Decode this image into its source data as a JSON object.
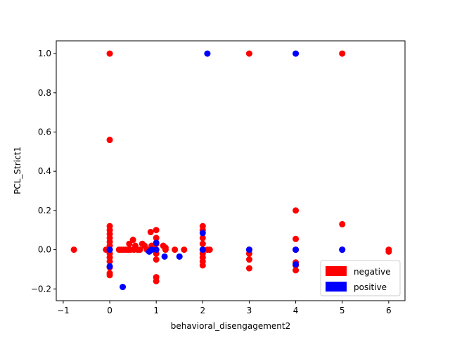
{
  "chart_data": {
    "type": "scatter",
    "title": "",
    "xlabel": "behavioral_disengagement2",
    "ylabel": "PCL_Strict1",
    "xlim": [
      -1.15,
      6.35
    ],
    "ylim": [
      -0.26,
      1.065
    ],
    "x_ticks": [
      -1,
      0,
      1,
      2,
      3,
      4,
      5,
      6
    ],
    "x_tick_labels": [
      "−1",
      "0",
      "1",
      "2",
      "3",
      "4",
      "5",
      "6"
    ],
    "y_ticks": [
      -0.2,
      0.0,
      0.2,
      0.4,
      0.6,
      0.8,
      1.0
    ],
    "y_tick_labels": [
      "−0.2",
      "0.0",
      "0.2",
      "0.4",
      "0.6",
      "0.8",
      "1.0"
    ],
    "grid": false,
    "legend_position": "lower-right",
    "series": [
      {
        "name": "negative",
        "color": "#ff0000",
        "points": [
          [
            -0.77,
            0.0
          ],
          [
            0,
            1.0
          ],
          [
            0,
            0.56
          ],
          [
            0,
            0.12
          ],
          [
            0,
            0.1
          ],
          [
            0,
            0.08
          ],
          [
            0,
            0.06
          ],
          [
            0,
            0.04
          ],
          [
            0,
            0.02
          ],
          [
            0,
            0.0
          ],
          [
            0,
            -0.02
          ],
          [
            0,
            -0.04
          ],
          [
            0,
            -0.06
          ],
          [
            0,
            -0.09
          ],
          [
            0,
            -0.12
          ],
          [
            0,
            -0.13
          ],
          [
            -0.08,
            0.0
          ],
          [
            0.2,
            0.0
          ],
          [
            0.25,
            0.0
          ],
          [
            0.3,
            0.0
          ],
          [
            0.35,
            0.0
          ],
          [
            0.4,
            0.0
          ],
          [
            0.42,
            0.03
          ],
          [
            0.45,
            0.0
          ],
          [
            0.5,
            0.05
          ],
          [
            0.52,
            0.0
          ],
          [
            0.55,
            0.02
          ],
          [
            0.6,
            0.0
          ],
          [
            0.65,
            0.0
          ],
          [
            0.7,
            0.03
          ],
          [
            0.75,
            0.02
          ],
          [
            0.8,
            0.0
          ],
          [
            0.85,
            0.0
          ],
          [
            0.88,
            0.09
          ],
          [
            0.9,
            0.02
          ],
          [
            0.95,
            0.0
          ],
          [
            1.0,
            0.1
          ],
          [
            1.0,
            0.06
          ],
          [
            1.0,
            0.03
          ],
          [
            1.0,
            0.0
          ],
          [
            1.0,
            -0.02
          ],
          [
            1.0,
            -0.05
          ],
          [
            1.0,
            -0.14
          ],
          [
            1.0,
            -0.16
          ],
          [
            1.15,
            0.02
          ],
          [
            1.2,
            0.01
          ],
          [
            1.2,
            0.0
          ],
          [
            1.4,
            0.0
          ],
          [
            1.6,
            0.0
          ],
          [
            2.0,
            0.12
          ],
          [
            2.0,
            0.1
          ],
          [
            2.0,
            0.06
          ],
          [
            2.0,
            0.03
          ],
          [
            2.0,
            0.0
          ],
          [
            2.0,
            -0.02
          ],
          [
            2.0,
            -0.04
          ],
          [
            2.0,
            -0.06
          ],
          [
            2.0,
            -0.08
          ],
          [
            2.1,
            0.0
          ],
          [
            2.15,
            0.0
          ],
          [
            3.0,
            1.0
          ],
          [
            3.0,
            0.0
          ],
          [
            3.0,
            -0.02
          ],
          [
            3.0,
            -0.05
          ],
          [
            3.0,
            -0.095
          ],
          [
            4.0,
            0.2
          ],
          [
            4.0,
            0.055
          ],
          [
            4.0,
            0.0
          ],
          [
            4.0,
            -0.065
          ],
          [
            4.0,
            -0.08
          ],
          [
            4.0,
            -0.105
          ],
          [
            5.0,
            1.0
          ],
          [
            5.0,
            0.13
          ],
          [
            5.0,
            0.0
          ],
          [
            6.0,
            0.0
          ],
          [
            6.0,
            -0.01
          ]
        ]
      },
      {
        "name": "positive",
        "color": "#0000ff",
        "points": [
          [
            0,
            0.0
          ],
          [
            0,
            -0.085
          ],
          [
            0.28,
            -0.19
          ],
          [
            0.85,
            -0.01
          ],
          [
            0.9,
            0.0
          ],
          [
            1.0,
            0.035
          ],
          [
            1.0,
            0.0
          ],
          [
            1.18,
            -0.035
          ],
          [
            1.5,
            -0.035
          ],
          [
            2.0,
            0.085
          ],
          [
            2.0,
            0.0
          ],
          [
            2.1,
            1.0
          ],
          [
            3.0,
            0.0
          ],
          [
            4.0,
            1.0
          ],
          [
            4.0,
            0.0
          ],
          [
            4.0,
            -0.075
          ],
          [
            5.0,
            0.0
          ]
        ]
      }
    ]
  }
}
